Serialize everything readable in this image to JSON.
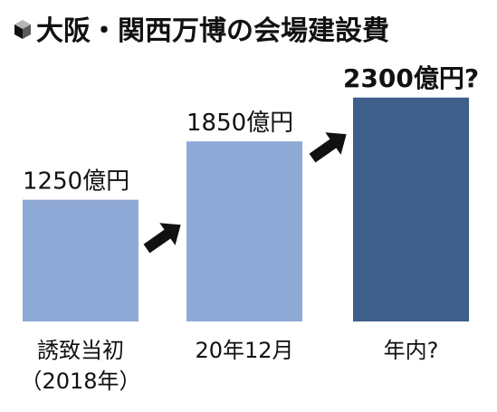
{
  "chart_data": {
    "type": "bar",
    "title": "大阪・関西万博の会場建設費",
    "categories": [
      [
        "誘致当初",
        "（2018年）"
      ],
      [
        "20年12月"
      ],
      [
        "年内?"
      ]
    ],
    "values": [
      1250,
      1850,
      2300
    ],
    "value_labels": [
      "1250億円",
      "1850億円",
      "2300億円?"
    ],
    "unit": "億円",
    "colors": [
      "#8fa9d6",
      "#8fa9d6",
      "#3e5f8a"
    ],
    "arrows_between_bars": true,
    "icon": "cube-icon"
  }
}
